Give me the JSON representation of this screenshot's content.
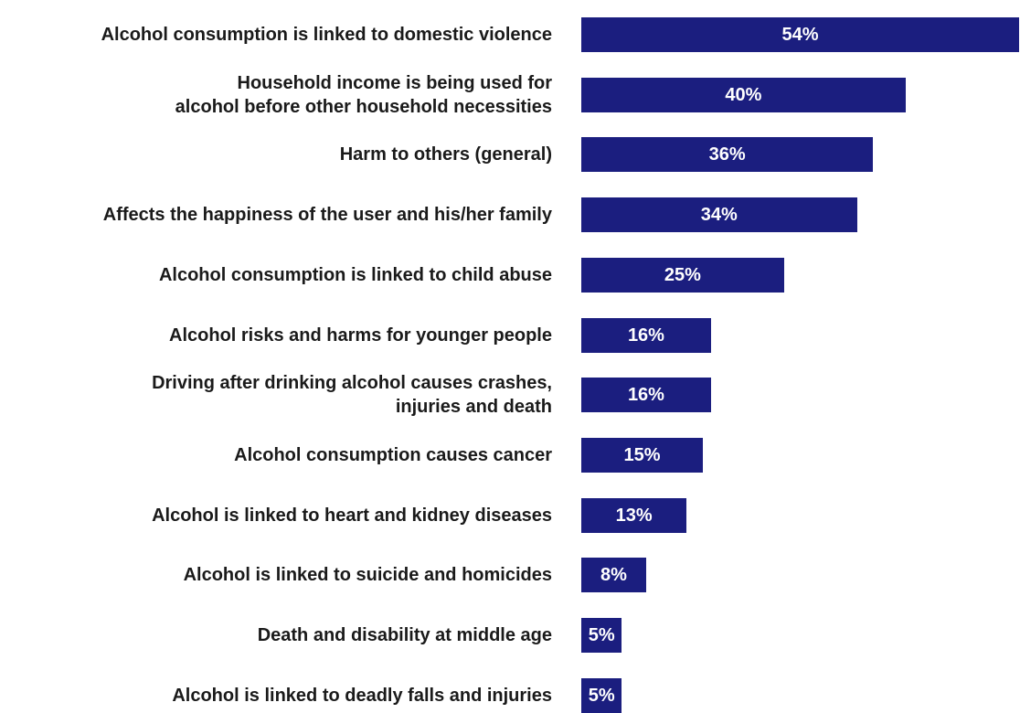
{
  "chart_data": {
    "type": "bar",
    "orientation": "horizontal",
    "title": "",
    "xlabel": "",
    "ylabel": "",
    "grid": false,
    "bar_color": "#1b1e7f",
    "value_label_color": "#ffffff",
    "xlim": [
      0,
      54
    ],
    "categories": [
      "Alcohol consumption is linked to domestic violence",
      "Household income is being used for\nalcohol before other household necessities",
      "Harm to others (general)",
      "Affects the happiness of the user and his/her family",
      "Alcohol consumption is linked to child abuse",
      "Alcohol risks and harms for younger people",
      "Driving after drinking alcohol causes crashes,\ninjuries and death",
      "Alcohol consumption causes cancer",
      "Alcohol is linked to heart and kidney diseases",
      "Alcohol is linked to suicide and homicides",
      "Death and disability at middle age",
      "Alcohol is linked to deadly falls and injuries"
    ],
    "values": [
      54,
      40,
      36,
      34,
      25,
      16,
      16,
      15,
      13,
      8,
      5,
      5
    ],
    "value_labels": [
      "54%",
      "40%",
      "36%",
      "34%",
      "25%",
      "16%",
      "16%",
      "15%",
      "13%",
      "8%",
      "5%",
      "5%"
    ]
  }
}
